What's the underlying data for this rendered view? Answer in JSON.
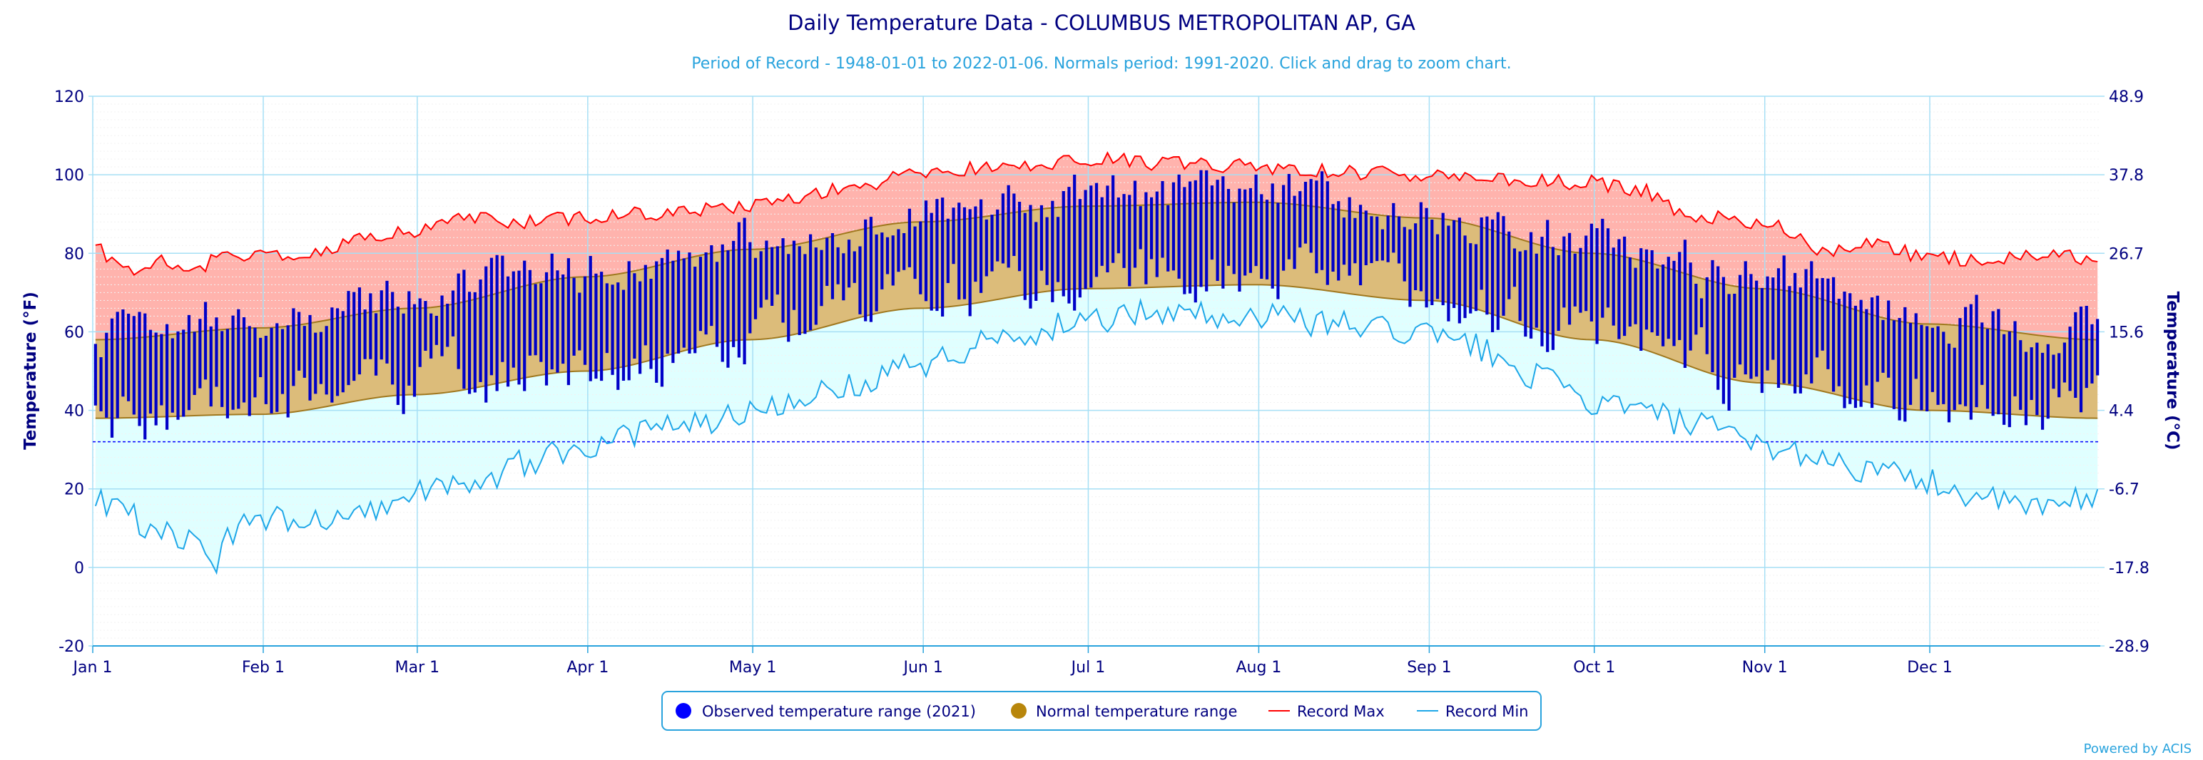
{
  "chart_data": {
    "type": "area",
    "title": "Daily Temperature Data - COLUMBUS METROPOLITAN AP, GA",
    "subtitle": "Period of Record - 1948-01-01 to 2022-01-06. Normals period: 1991-2020. Click and drag to zoom chart.",
    "ylabel_left": "Temperature (°F)",
    "ylabel_right": "Temperature (°C)",
    "ylim_f": [
      -20,
      120
    ],
    "ylim_c": [
      -28.9,
      48.9
    ],
    "yticks_f": [
      "-20",
      "0",
      "20",
      "40",
      "60",
      "80",
      "100",
      "120"
    ],
    "yticks_c": [
      "-28.9",
      "-17.8",
      "-6.7",
      "4.4",
      "15.6",
      "26.7",
      "37.8",
      "48.9"
    ],
    "months": [
      {
        "label": "Jan 1",
        "day": 0
      },
      {
        "label": "Feb 1",
        "day": 31
      },
      {
        "label": "Mar 1",
        "day": 59
      },
      {
        "label": "Apr 1",
        "day": 90
      },
      {
        "label": "May 1",
        "day": 120
      },
      {
        "label": "Jun 1",
        "day": 151
      },
      {
        "label": "Jul 1",
        "day": 181
      },
      {
        "label": "Aug 1",
        "day": 212
      },
      {
        "label": "Sep 1",
        "day": 243
      },
      {
        "label": "Oct 1",
        "day": 273
      },
      {
        "label": "Nov 1",
        "day": 304
      },
      {
        "label": "Dec 1",
        "day": 334
      }
    ],
    "freezing_line_f": 32,
    "record_max_anchors": [
      [
        1,
        82
      ],
      [
        6,
        75
      ],
      [
        12,
        78
      ],
      [
        18,
        76
      ],
      [
        25,
        79
      ],
      [
        31,
        79
      ],
      [
        40,
        80
      ],
      [
        50,
        84
      ],
      [
        59,
        86
      ],
      [
        70,
        89
      ],
      [
        80,
        88
      ],
      [
        90,
        89
      ],
      [
        100,
        90
      ],
      [
        110,
        91
      ],
      [
        120,
        92
      ],
      [
        131,
        95
      ],
      [
        140,
        97
      ],
      [
        151,
        101
      ],
      [
        165,
        102
      ],
      [
        181,
        104
      ],
      [
        195,
        103
      ],
      [
        212,
        102
      ],
      [
        225,
        101
      ],
      [
        243,
        100
      ],
      [
        255,
        99
      ],
      [
        268,
        98
      ],
      [
        273,
        98
      ],
      [
        282,
        96
      ],
      [
        292,
        89
      ],
      [
        304,
        88
      ],
      [
        315,
        81
      ],
      [
        325,
        82
      ],
      [
        334,
        79
      ],
      [
        345,
        78
      ],
      [
        355,
        79
      ],
      [
        365,
        79
      ]
    ],
    "record_min_anchors": [
      [
        1,
        18
      ],
      [
        6,
        14
      ],
      [
        12,
        9
      ],
      [
        18,
        8
      ],
      [
        22,
        0
      ],
      [
        26,
        9
      ],
      [
        31,
        13
      ],
      [
        40,
        12
      ],
      [
        50,
        15
      ],
      [
        59,
        19
      ],
      [
        70,
        22
      ],
      [
        80,
        27
      ],
      [
        90,
        31
      ],
      [
        100,
        34
      ],
      [
        110,
        37
      ],
      [
        120,
        40
      ],
      [
        131,
        44
      ],
      [
        140,
        47
      ],
      [
        151,
        52
      ],
      [
        165,
        58
      ],
      [
        181,
        63
      ],
      [
        195,
        65
      ],
      [
        212,
        64
      ],
      [
        225,
        62
      ],
      [
        240,
        60
      ],
      [
        250,
        57
      ],
      [
        262,
        49
      ],
      [
        273,
        42
      ],
      [
        282,
        40
      ],
      [
        292,
        36
      ],
      [
        304,
        31
      ],
      [
        315,
        28
      ],
      [
        325,
        24
      ],
      [
        334,
        22
      ],
      [
        345,
        17
      ],
      [
        355,
        15
      ],
      [
        365,
        18
      ]
    ],
    "normal_max_anchors": [
      [
        1,
        58
      ],
      [
        31,
        61
      ],
      [
        59,
        66
      ],
      [
        90,
        74
      ],
      [
        120,
        81
      ],
      [
        151,
        88
      ],
      [
        181,
        92
      ],
      [
        212,
        93
      ],
      [
        243,
        89
      ],
      [
        273,
        80
      ],
      [
        304,
        71
      ],
      [
        334,
        62
      ],
      [
        365,
        58
      ]
    ],
    "normal_min_anchors": [
      [
        1,
        38
      ],
      [
        31,
        39
      ],
      [
        59,
        44
      ],
      [
        90,
        50
      ],
      [
        120,
        58
      ],
      [
        151,
        66
      ],
      [
        181,
        71
      ],
      [
        212,
        72
      ],
      [
        243,
        68
      ],
      [
        273,
        58
      ],
      [
        304,
        47
      ],
      [
        334,
        40
      ],
      [
        365,
        38
      ]
    ],
    "observed_variability": {
      "high_amplitude": 7,
      "low_amplitude": 9
    },
    "legend": [
      {
        "label": "Observed temperature range (2021)",
        "kind": "dot",
        "color": "#0000ff"
      },
      {
        "label": "Normal temperature range",
        "kind": "dot",
        "color": "#b8860b"
      },
      {
        "label": "Record Max",
        "kind": "line",
        "color": "#ff0000"
      },
      {
        "label": "Record Min",
        "kind": "line",
        "color": "#1e9be0"
      }
    ],
    "credit": "Powered by ACIS",
    "colors": {
      "record_band": "#ffb3ad",
      "cold_band": "#e0ffff",
      "normal_band": "#dcbc7a",
      "normal_edge": "#a0781e",
      "observed": "#0000c8",
      "record_max": "#ff0000",
      "record_min": "#1ea7e8",
      "grid": "#a6dff5",
      "axis_text": "#000080",
      "subtitle": "#29a3dd",
      "title": "#000080"
    },
    "legend_position": "bottom-center",
    "grid": true
  }
}
